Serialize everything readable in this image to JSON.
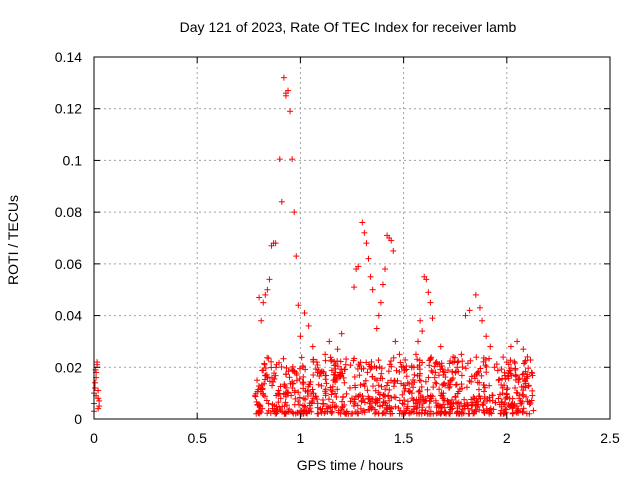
{
  "chart_data": {
    "type": "scatter",
    "title": "Day 121 of 2023, Rate Of TEC Index for receiver lamb",
    "xlabel": "GPS time / hours",
    "ylabel": "ROTI / TECUs",
    "xlim": [
      0,
      2.5
    ],
    "ylim": [
      0,
      0.14
    ],
    "grid": true,
    "marker": "+",
    "color": "#ff0000",
    "x_ticks": [
      "0",
      "0.5",
      "1",
      "1.5",
      "2",
      "2.5"
    ],
    "y_ticks": [
      "0",
      "0.02",
      "0.04",
      "0.06",
      "0.08",
      "0.1",
      "0.12",
      "0.14"
    ],
    "series": [
      {
        "name": "ROTI",
        "x": [
          0.0,
          0.005,
          0.01,
          0.015,
          0.02,
          0.025,
          0.0,
          0.01,
          0.02,
          0.005,
          0.015,
          0.025,
          0.0,
          0.01,
          0.02,
          0.008,
          0.92,
          0.93,
          0.94,
          0.95,
          0.9,
          0.91,
          0.93,
          0.96,
          0.97,
          0.98,
          0.99,
          0.88,
          0.86,
          0.87,
          0.85,
          0.84,
          0.83,
          0.82,
          0.81,
          0.8,
          0.79,
          0.78,
          1.3,
          1.31,
          1.32,
          1.33,
          1.34,
          1.35,
          1.28,
          1.27,
          1.26,
          1.42,
          1.43,
          1.44,
          1.45,
          1.41,
          1.4,
          1.39,
          1.38,
          1.37,
          1.6,
          1.61,
          1.62,
          1.63,
          1.64,
          1.59,
          1.58,
          1.57,
          1.56,
          1.55,
          1.8,
          1.82,
          1.85,
          1.87,
          1.88,
          1.9,
          1.92,
          1.78,
          1.76,
          2.0,
          2.02,
          2.05,
          2.08,
          2.1,
          2.12,
          2.04,
          2.06,
          1.0,
          1.02,
          1.04,
          1.06,
          1.08,
          1.1,
          1.12,
          1.14,
          1.16,
          1.18,
          1.2,
          1.22,
          1.24,
          1.46,
          1.48,
          1.5,
          1.52,
          1.54,
          1.66,
          1.68,
          1.7,
          1.72,
          1.74,
          1.94,
          1.96,
          1.98
        ],
        "y": [
          0.006,
          0.012,
          0.016,
          0.021,
          0.008,
          0.005,
          0.01,
          0.018,
          0.004,
          0.014,
          0.022,
          0.007,
          0.003,
          0.009,
          0.011,
          0.019,
          0.132,
          0.126,
          0.127,
          0.119,
          0.1005,
          0.084,
          0.125,
          0.1005,
          0.08,
          0.063,
          0.044,
          0.068,
          0.067,
          0.068,
          0.054,
          0.05,
          0.048,
          0.045,
          0.038,
          0.047,
          0.015,
          0.009,
          0.076,
          0.072,
          0.068,
          0.062,
          0.055,
          0.05,
          0.059,
          0.058,
          0.051,
          0.071,
          0.07,
          0.069,
          0.065,
          0.058,
          0.052,
          0.045,
          0.04,
          0.035,
          0.055,
          0.054,
          0.049,
          0.045,
          0.039,
          0.034,
          0.038,
          0.03,
          0.025,
          0.02,
          0.04,
          0.042,
          0.048,
          0.043,
          0.038,
          0.032,
          0.028,
          0.025,
          0.02,
          0.022,
          0.028,
          0.03,
          0.027,
          0.024,
          0.018,
          0.012,
          0.008,
          0.032,
          0.041,
          0.036,
          0.028,
          0.022,
          0.018,
          0.025,
          0.03,
          0.015,
          0.027,
          0.033,
          0.021,
          0.012,
          0.03,
          0.025,
          0.02,
          0.014,
          0.01,
          0.022,
          0.028,
          0.018,
          0.012,
          0.024,
          0.02,
          0.015,
          0.01
        ],
        "dense_band": {
          "x_range": [
            0.78,
            2.13
          ],
          "y_range": [
            0.002,
            0.024
          ]
        }
      }
    ]
  }
}
